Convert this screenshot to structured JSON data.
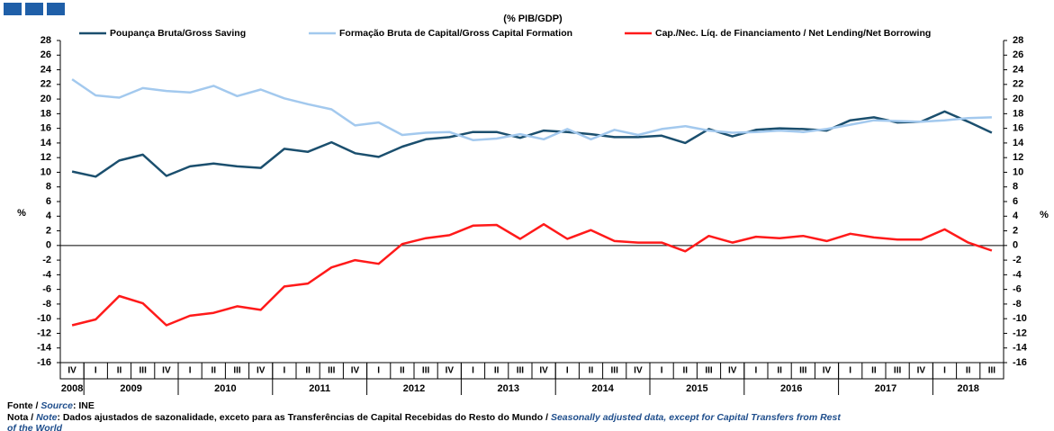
{
  "chart_data": {
    "type": "line",
    "title": "(% PIB/GDP)",
    "y_label": "%",
    "categories": [
      "IV",
      "I",
      "II",
      "III",
      "IV",
      "I",
      "II",
      "III",
      "IV",
      "I",
      "II",
      "III",
      "IV",
      "I",
      "II",
      "III",
      "IV",
      "I",
      "II",
      "III",
      "IV",
      "I",
      "II",
      "III",
      "IV",
      "I",
      "II",
      "III",
      "IV",
      "I",
      "II",
      "III",
      "IV",
      "I",
      "II",
      "III",
      "IV",
      "I",
      "II",
      "III"
    ],
    "years": [
      "2008",
      "2009",
      "2010",
      "2011",
      "2012",
      "2013",
      "2014",
      "2015",
      "2016",
      "2017",
      "2018"
    ],
    "series": [
      {
        "name": "Poupança Bruta/Gross Saving",
        "color": "#1b4f6e",
        "values": [
          10.1,
          9.4,
          11.6,
          12.4,
          9.5,
          10.8,
          11.2,
          10.8,
          10.6,
          13.2,
          12.8,
          14.1,
          12.6,
          12.1,
          13.5,
          14.5,
          14.8,
          15.5,
          15.5,
          14.7,
          15.7,
          15.5,
          15.2,
          14.8,
          14.8,
          15.0,
          14.0,
          15.9,
          14.9,
          15.8,
          16.0,
          15.9,
          15.7,
          17.1,
          17.5,
          16.8,
          16.9,
          18.3,
          16.9,
          15.4
        ]
      },
      {
        "name": "Formação Bruta de Capital/Gross Capital Formation",
        "color": "#a3c9ee",
        "values": [
          22.7,
          20.5,
          20.2,
          21.5,
          21.1,
          20.9,
          21.8,
          20.4,
          21.3,
          20.1,
          19.3,
          18.6,
          16.4,
          16.8,
          15.1,
          15.4,
          15.5,
          14.4,
          14.6,
          15.2,
          14.5,
          15.9,
          14.5,
          15.8,
          15.1,
          15.9,
          16.3,
          15.7,
          15.4,
          15.5,
          15.7,
          15.5,
          15.9,
          16.5,
          17.1,
          17.0,
          16.9,
          17.1,
          17.4,
          17.5
        ]
      },
      {
        "name": "Cap./Nec. Líq. de Financiamento / Net Lending/Net Borrowing",
        "color": "#ff1a1a",
        "values": [
          -10.9,
          -10.1,
          -6.9,
          -7.9,
          -10.9,
          -9.6,
          -9.2,
          -8.3,
          -8.8,
          -5.6,
          -5.2,
          -3.0,
          -2.0,
          -2.5,
          0.2,
          1.0,
          1.4,
          2.7,
          2.8,
          0.9,
          2.9,
          0.9,
          2.1,
          0.6,
          0.4,
          0.4,
          -0.8,
          1.3,
          0.4,
          1.2,
          1.0,
          1.3,
          0.6,
          1.6,
          1.1,
          0.8,
          0.8,
          2.2,
          0.4,
          -0.7
        ]
      }
    ],
    "ylim": [
      -16,
      28
    ],
    "yticks": [
      -16,
      -14,
      -12,
      -10,
      -8,
      -6,
      -4,
      -2,
      0,
      2,
      4,
      6,
      8,
      10,
      12,
      14,
      16,
      18,
      20,
      22,
      24,
      26,
      28
    ],
    "y2lim": [
      -16,
      28
    ],
    "y2ticks": [
      -16,
      -14,
      -12,
      -10,
      -8,
      -6,
      -4,
      -2,
      0,
      2,
      4,
      6,
      8,
      10,
      12,
      14,
      16,
      18,
      20,
      22,
      24,
      26,
      28
    ],
    "grid": false
  },
  "footer": {
    "source_label": "Fonte /",
    "source_label_en": "Source",
    "source": ":  INE",
    "note_label": "Nota /",
    "note_label_en": "Note",
    "note_pt": ": Dados ajustados de sazonalidade, exceto para as Transferências de Capital Recebidas do Resto do Mundo /",
    "note_en_1": "Seasonally adjusted data, except for Capital Transfers from Rest",
    "note_en_2": "of the World"
  }
}
